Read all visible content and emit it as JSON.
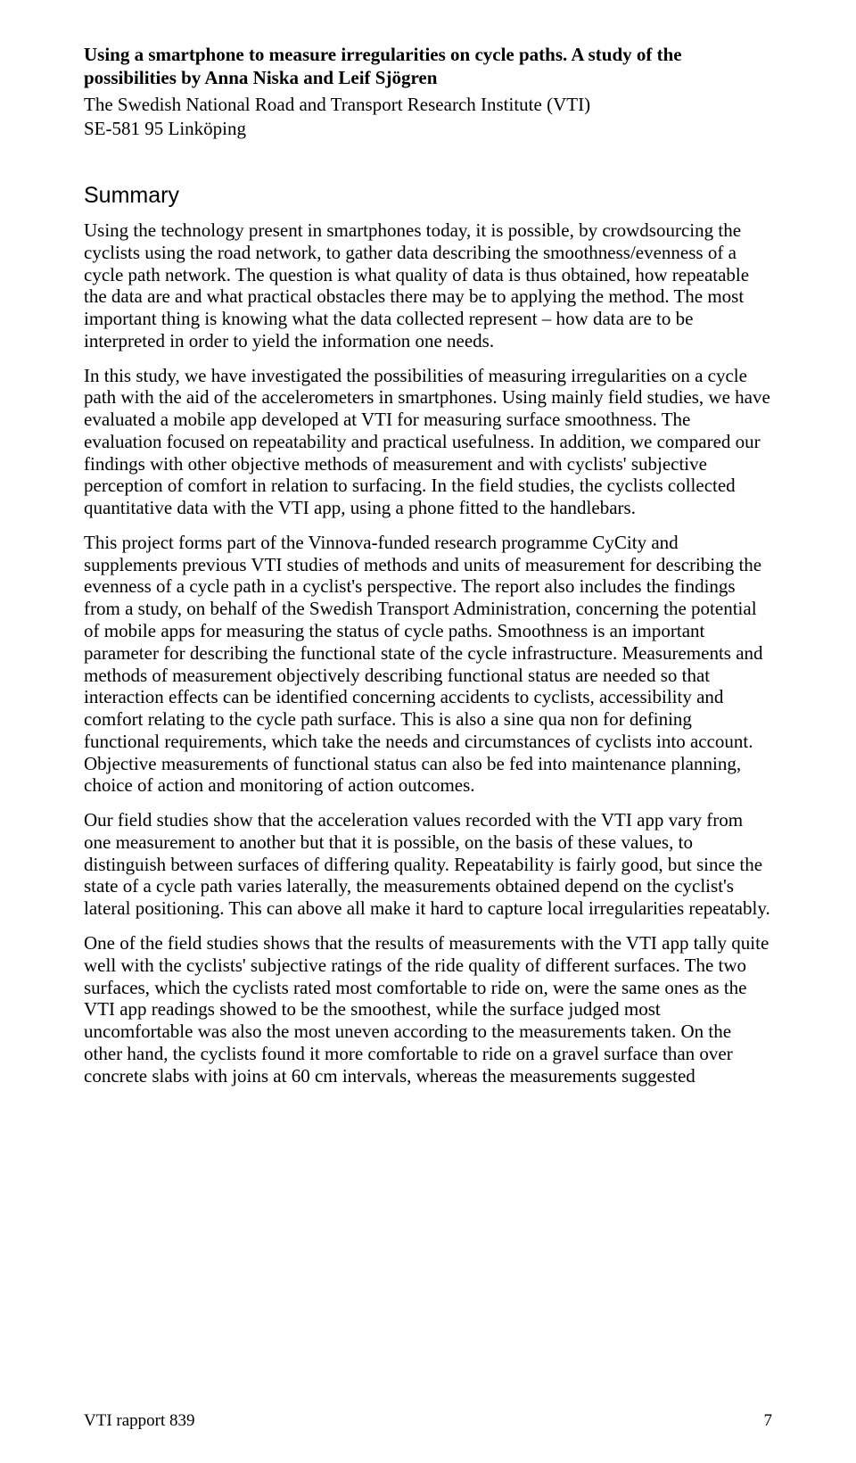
{
  "title": "Using a smartphone to measure irregularities on cycle paths. A study of the possibilities by Anna Niska and Leif Sjögren",
  "institute": "The Swedish National Road and Transport Research Institute (VTI)",
  "postal": "SE-581 95 Linköping",
  "summary_heading": "Summary",
  "paragraphs": {
    "p1": "Using the technology present in smartphones today, it is possible, by crowdsourcing the cyclists using the road network, to gather data describing the smoothness/evenness of a cycle path network. The question is what quality of data is thus obtained, how repeatable the data are and what practical obstacles there may be to applying the method. The most important thing is knowing what the data collected represent – how data are to be interpreted in order to yield the information one needs.",
    "p2": "In this study, we have investigated the possibilities of measuring irregularities on a cycle path with the aid of the accelerometers in smartphones. Using mainly field studies, we have evaluated a mobile app developed at VTI for measuring surface smoothness. The evaluation focused on repeatability and practical usefulness. In addition, we compared our findings with other objective methods of measurement and with cyclists' subjective perception of comfort in relation to surfacing. In the field studies, the cyclists collected quantitative data with the VTI app, using a phone fitted to the handlebars.",
    "p3": "This project forms part of the Vinnova-funded research programme CyCity and supplements previous VTI studies of methods and units of measurement for describing the evenness of a cycle path in a cyclist's perspective. The report also includes the findings from a study, on behalf of the Swedish Transport Administration, concerning the potential of mobile apps for measuring the status of cycle paths. Smoothness is an important parameter for describing the functional state of the cycle infrastructure. Measurements and methods of measurement objectively describing functional status are needed so that interaction effects can be identified concerning accidents to cyclists, accessibility and comfort relating to the cycle path surface. This is also a sine qua non for defining functional requirements, which take the needs and circumstances of cyclists into account. Objective measurements of functional status can also be fed into maintenance planning, choice of action and monitoring of action outcomes.",
    "p4": "Our field studies show that the acceleration values recorded with the VTI app vary from one measurement to another but that it is possible, on the basis of these values, to distinguish between surfaces of differing quality. Repeatability is fairly good, but since the state of a cycle path varies laterally, the measurements obtained depend on the cyclist's lateral positioning. This can above all make it hard to capture local irregularities repeatably.",
    "p5": "One of the field studies shows that the results of measurements with the VTI app tally quite well with the cyclists' subjective ratings of the ride quality of different surfaces. The two surfaces, which the cyclists rated most comfortable to ride on, were the same ones as the VTI app readings showed to be the smoothest, while the surface judged most uncomfortable was also the most uneven according to the measurements taken. On the other hand, the cyclists found it more comfortable to ride on a gravel surface than over concrete slabs with joins at 60 cm intervals, whereas the measurements suggested"
  },
  "footer": {
    "report": "VTI rapport 839",
    "page": "7"
  }
}
